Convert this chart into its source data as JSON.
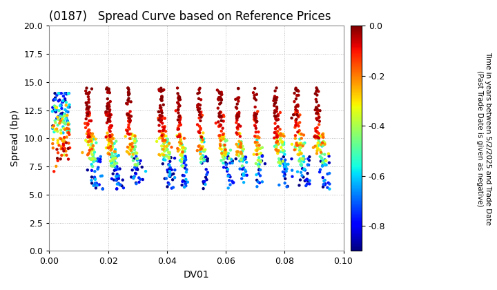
{
  "title": "(0187)   Spread Curve based on Reference Prices",
  "xlabel": "DV01",
  "ylabel": "Spread (bp)",
  "xlim": [
    0.0,
    0.1
  ],
  "ylim": [
    0.0,
    20.0
  ],
  "yticks": [
    0.0,
    2.5,
    5.0,
    7.5,
    10.0,
    12.5,
    15.0,
    17.5,
    20.0
  ],
  "xticks": [
    0.0,
    0.02,
    0.04,
    0.06,
    0.08,
    0.1
  ],
  "colorbar_label_line1": "Time in years between 5/2/2025 and Trade Date",
  "colorbar_label_line2": "(Past Trade Date is given as negative)",
  "cbar_ticks": [
    0.0,
    -0.2,
    -0.4,
    -0.6,
    -0.8
  ],
  "cmap": "jet",
  "color_vmin": -0.9,
  "color_vmax": 0.0,
  "marker_size": 10,
  "background_color": "#ffffff",
  "grid_color": "#bbbbbb",
  "title_fontsize": 12,
  "axis_fontsize": 10
}
